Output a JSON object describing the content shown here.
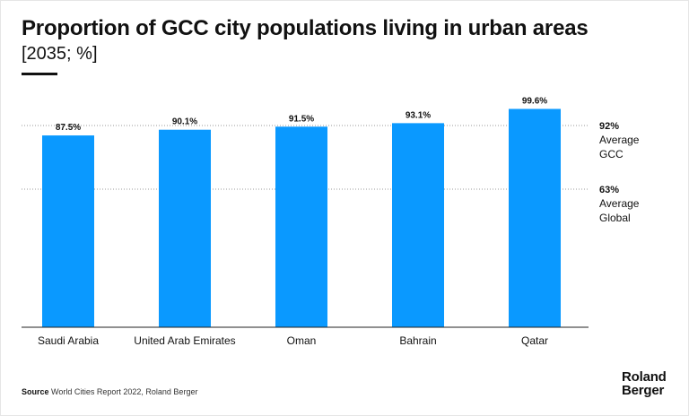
{
  "header": {
    "title": "Proportion of GCC city populations living in urban areas",
    "subtitle": "[2035; %]"
  },
  "footer": {
    "source_label": "Source",
    "source_text": "World Cities Report 2022, Roland Berger",
    "logo_line1": "Roland",
    "logo_line2": "Berger"
  },
  "colors": {
    "bar": "#0a99ff",
    "reference_line": "#9a9a9a",
    "axis": "#222222",
    "text": "#111111"
  },
  "chart_data": {
    "type": "bar",
    "title": "Proportion of GCC city populations living in urban areas",
    "subtitle": "[2035; %]",
    "categories": [
      "Saudi Arabia",
      "United Arab Emirates",
      "Oman",
      "Bahrain",
      "Qatar"
    ],
    "values": [
      87.5,
      90.1,
      91.5,
      93.1,
      99.6
    ],
    "value_labels": [
      "87.5%",
      "90.1%",
      "91.5%",
      "93.1%",
      "99.6%"
    ],
    "xlabel": "",
    "ylabel": "",
    "ylim": [
      0,
      100
    ],
    "grid": false,
    "reference_lines": [
      {
        "value": 92,
        "value_label": "92%",
        "label_lines": [
          "Average",
          "GCC"
        ]
      },
      {
        "value": 63,
        "value_label": "63%",
        "label_lines": [
          "Average",
          "Global"
        ]
      }
    ]
  }
}
